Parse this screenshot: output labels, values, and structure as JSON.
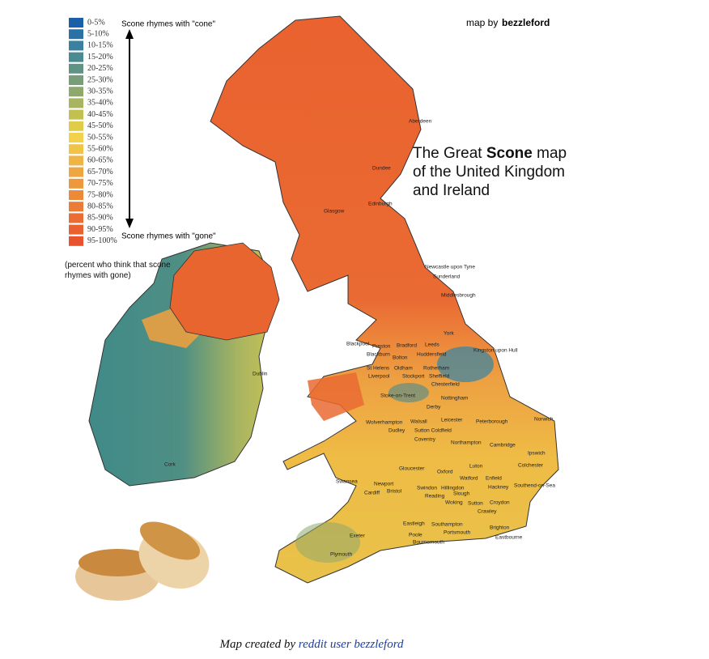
{
  "header": {
    "credit_prefix": "map by",
    "credit_name": "bezzleford"
  },
  "title": {
    "prefix": "The Great",
    "bold": "Scone",
    "rest": "map of the United Kingdom and Ireland"
  },
  "legend": {
    "top_label": "Scone rhymes with \"cone\"",
    "bottom_label": "Scone rhymes with \"gone\"",
    "note": "(percent who think that scone rhymes with gone)",
    "items": [
      {
        "label": "0-5%",
        "color": "#1b5fa8"
      },
      {
        "label": "5-10%",
        "color": "#2a72a6"
      },
      {
        "label": "10-15%",
        "color": "#3a80a0"
      },
      {
        "label": "15-20%",
        "color": "#4a8a90"
      },
      {
        "label": "20-25%",
        "color": "#5f9484"
      },
      {
        "label": "25-30%",
        "color": "#779e78"
      },
      {
        "label": "30-35%",
        "color": "#8fa86c"
      },
      {
        "label": "35-40%",
        "color": "#a8b460"
      },
      {
        "label": "40-45%",
        "color": "#c3c052"
      },
      {
        "label": "45-50%",
        "color": "#e0cc48"
      },
      {
        "label": "50-55%",
        "color": "#f1d24a"
      },
      {
        "label": "55-60%",
        "color": "#f0c446"
      },
      {
        "label": "60-65%",
        "color": "#efb443"
      },
      {
        "label": "65-70%",
        "color": "#eea640"
      },
      {
        "label": "70-75%",
        "color": "#ed983d"
      },
      {
        "label": "75-80%",
        "color": "#ec8a3a"
      },
      {
        "label": "80-85%",
        "color": "#eb7c37"
      },
      {
        "label": "85-90%",
        "color": "#ea6e34"
      },
      {
        "label": "90-95%",
        "color": "#e96031"
      },
      {
        "label": "95-100%",
        "color": "#e8532e"
      }
    ]
  },
  "cities": [
    "Aberdeen",
    "Dundee",
    "Edinburgh",
    "Glasgow",
    "Newcastle upon Tyne",
    "Sunderland",
    "Middlesbrough",
    "York",
    "Blackpool",
    "Preston",
    "Bradford",
    "Leeds",
    "Blackburn",
    "Bolton",
    "Huddersfield",
    "Kingston upon Hull",
    "St Helens",
    "Oldham",
    "Rotherham",
    "Liverpool",
    "Stockport",
    "Sheffield",
    "Chesterfield",
    "Stoke-on-Trent",
    "Nottingham",
    "Derby",
    "Norwich",
    "Wolverhampton",
    "Walsall",
    "Leicester",
    "Peterborough",
    "Dudley",
    "Sutton Coldfield",
    "Coventry",
    "Northampton",
    "Cambridge",
    "Ipswich",
    "Colchester",
    "Gloucester",
    "Oxford",
    "Luton",
    "Swansea",
    "Newport",
    "Cardiff",
    "Bristol",
    "Watford",
    "Enfield",
    "Swindon",
    "Hillingdon",
    "Hackney",
    "Southend-on-Sea",
    "Reading",
    "Slough",
    "Woking",
    "Sutton",
    "Croydon",
    "Crawley",
    "Eastleigh",
    "Southampton",
    "Brighton",
    "Eastbourne",
    "Exeter",
    "Poole",
    "Portsmouth",
    "Bournemouth",
    "Plymouth",
    "Dublin",
    "Cork"
  ],
  "footer": {
    "prefix": "Map created by",
    "link": "reddit user bezzleford"
  }
}
